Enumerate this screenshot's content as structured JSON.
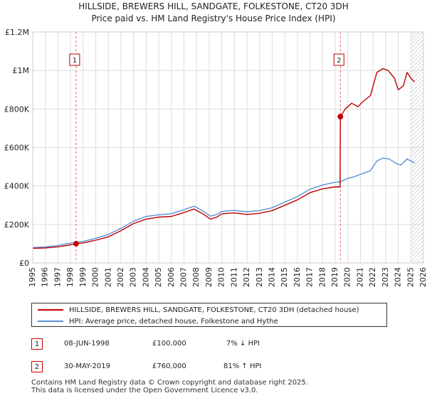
{
  "chart_data": {
    "type": "line",
    "title": "HILLSIDE, BREWERS HILL, SANDGATE, FOLKESTONE, CT20 3DH",
    "subtitle": "Price paid vs. HM Land Registry's House Price Index (HPI)",
    "xlim": [
      1995,
      2026
    ],
    "ylim": [
      0,
      1200000
    ],
    "x_ticks": [
      1995,
      1996,
      1997,
      1998,
      1999,
      2000,
      2001,
      2002,
      2003,
      2004,
      2005,
      2006,
      2007,
      2008,
      2009,
      2010,
      2011,
      2012,
      2013,
      2014,
      2015,
      2016,
      2017,
      2018,
      2019,
      2020,
      2021,
      2022,
      2023,
      2024,
      2025,
      2026
    ],
    "y_ticks": [
      {
        "value": 0,
        "label": "£0"
      },
      {
        "value": 200000,
        "label": "£200K"
      },
      {
        "value": 400000,
        "label": "£400K"
      },
      {
        "value": 600000,
        "label": "£600K"
      },
      {
        "value": 800000,
        "label": "£800K"
      },
      {
        "value": 1000000,
        "label": "£1M"
      },
      {
        "value": 1200000,
        "label": "£1.2M"
      }
    ],
    "hatch_from": 2025.0,
    "series": [
      {
        "name": "HILLSIDE, BREWERS HILL, SANDGATE, FOLKESTONE, CT20 3DH (detached house)",
        "color": "#c00000",
        "points": [
          [
            1995.0,
            76000
          ],
          [
            1996.0,
            78000
          ],
          [
            1997.0,
            84000
          ],
          [
            1998.0,
            94000
          ],
          [
            1998.44,
            100000
          ],
          [
            1999.0,
            104000
          ],
          [
            2000.0,
            118000
          ],
          [
            2001.0,
            136000
          ],
          [
            2002.0,
            168000
          ],
          [
            2003.0,
            205000
          ],
          [
            2004.0,
            228000
          ],
          [
            2005.0,
            238000
          ],
          [
            2006.0,
            242000
          ],
          [
            2007.0,
            262000
          ],
          [
            2007.8,
            280000
          ],
          [
            2008.5,
            255000
          ],
          [
            2009.1,
            228000
          ],
          [
            2009.6,
            238000
          ],
          [
            2010.0,
            255000
          ],
          [
            2011.0,
            260000
          ],
          [
            2012.0,
            252000
          ],
          [
            2013.0,
            258000
          ],
          [
            2014.0,
            272000
          ],
          [
            2015.0,
            300000
          ],
          [
            2016.0,
            328000
          ],
          [
            2017.0,
            365000
          ],
          [
            2018.0,
            385000
          ],
          [
            2019.0,
            395000
          ],
          [
            2019.38,
            395000
          ],
          [
            2019.41,
            760000
          ],
          [
            2019.8,
            800000
          ],
          [
            2020.3,
            830000
          ],
          [
            2020.8,
            812000
          ],
          [
            2021.2,
            838000
          ],
          [
            2021.8,
            870000
          ],
          [
            2022.3,
            990000
          ],
          [
            2022.8,
            1010000
          ],
          [
            2023.2,
            1000000
          ],
          [
            2023.7,
            960000
          ],
          [
            2024.0,
            900000
          ],
          [
            2024.4,
            920000
          ],
          [
            2024.7,
            990000
          ],
          [
            2025.0,
            960000
          ],
          [
            2025.3,
            940000
          ]
        ]
      },
      {
        "name": "HPI: Average price, detached house, Folkestone and Hythe",
        "color": "#5b8fd4",
        "points": [
          [
            1995.0,
            80000
          ],
          [
            1996.0,
            83000
          ],
          [
            1997.0,
            91000
          ],
          [
            1998.0,
            103000
          ],
          [
            1999.0,
            112000
          ],
          [
            2000.0,
            128000
          ],
          [
            2001.0,
            148000
          ],
          [
            2002.0,
            180000
          ],
          [
            2003.0,
            217000
          ],
          [
            2004.0,
            242000
          ],
          [
            2005.0,
            250000
          ],
          [
            2006.0,
            256000
          ],
          [
            2007.0,
            277000
          ],
          [
            2007.8,
            295000
          ],
          [
            2008.5,
            270000
          ],
          [
            2009.1,
            243000
          ],
          [
            2009.6,
            252000
          ],
          [
            2010.0,
            268000
          ],
          [
            2011.0,
            273000
          ],
          [
            2012.0,
            266000
          ],
          [
            2013.0,
            272000
          ],
          [
            2014.0,
            287000
          ],
          [
            2015.0,
            316000
          ],
          [
            2016.0,
            345000
          ],
          [
            2017.0,
            383000
          ],
          [
            2018.0,
            405000
          ],
          [
            2019.0,
            420000
          ],
          [
            2019.4,
            422000
          ],
          [
            2020.0,
            440000
          ],
          [
            2020.5,
            448000
          ],
          [
            2021.0,
            460000
          ],
          [
            2021.8,
            480000
          ],
          [
            2022.3,
            530000
          ],
          [
            2022.8,
            545000
          ],
          [
            2023.3,
            540000
          ],
          [
            2023.8,
            518000
          ],
          [
            2024.2,
            508000
          ],
          [
            2024.7,
            540000
          ],
          [
            2025.0,
            530000
          ],
          [
            2025.3,
            520000
          ]
        ]
      }
    ],
    "sales": [
      {
        "label": "1",
        "x": 1998.44,
        "y": 100000
      },
      {
        "label": "2",
        "x": 2019.41,
        "y": 760000
      }
    ]
  },
  "legend": {
    "entries": [
      {
        "label": "HILLSIDE, BREWERS HILL, SANDGATE, FOLKESTONE, CT20 3DH (detached house)",
        "color": "#c00000"
      },
      {
        "label": "HPI: Average price, detached house, Folkestone and Hythe",
        "color": "#5b8fd4"
      }
    ]
  },
  "annotations": [
    {
      "num": "1",
      "date": "08-JUN-1998",
      "price": "£100,000",
      "hpi": "7% ↓ HPI"
    },
    {
      "num": "2",
      "date": "30-MAY-2019",
      "price": "£760,000",
      "hpi": "81% ↑ HPI"
    }
  ],
  "footer": {
    "line1": "Contains HM Land Registry data © Crown copyright and database right 2025.",
    "line2": "This data is licensed under the Open Government Licence v3.0."
  }
}
